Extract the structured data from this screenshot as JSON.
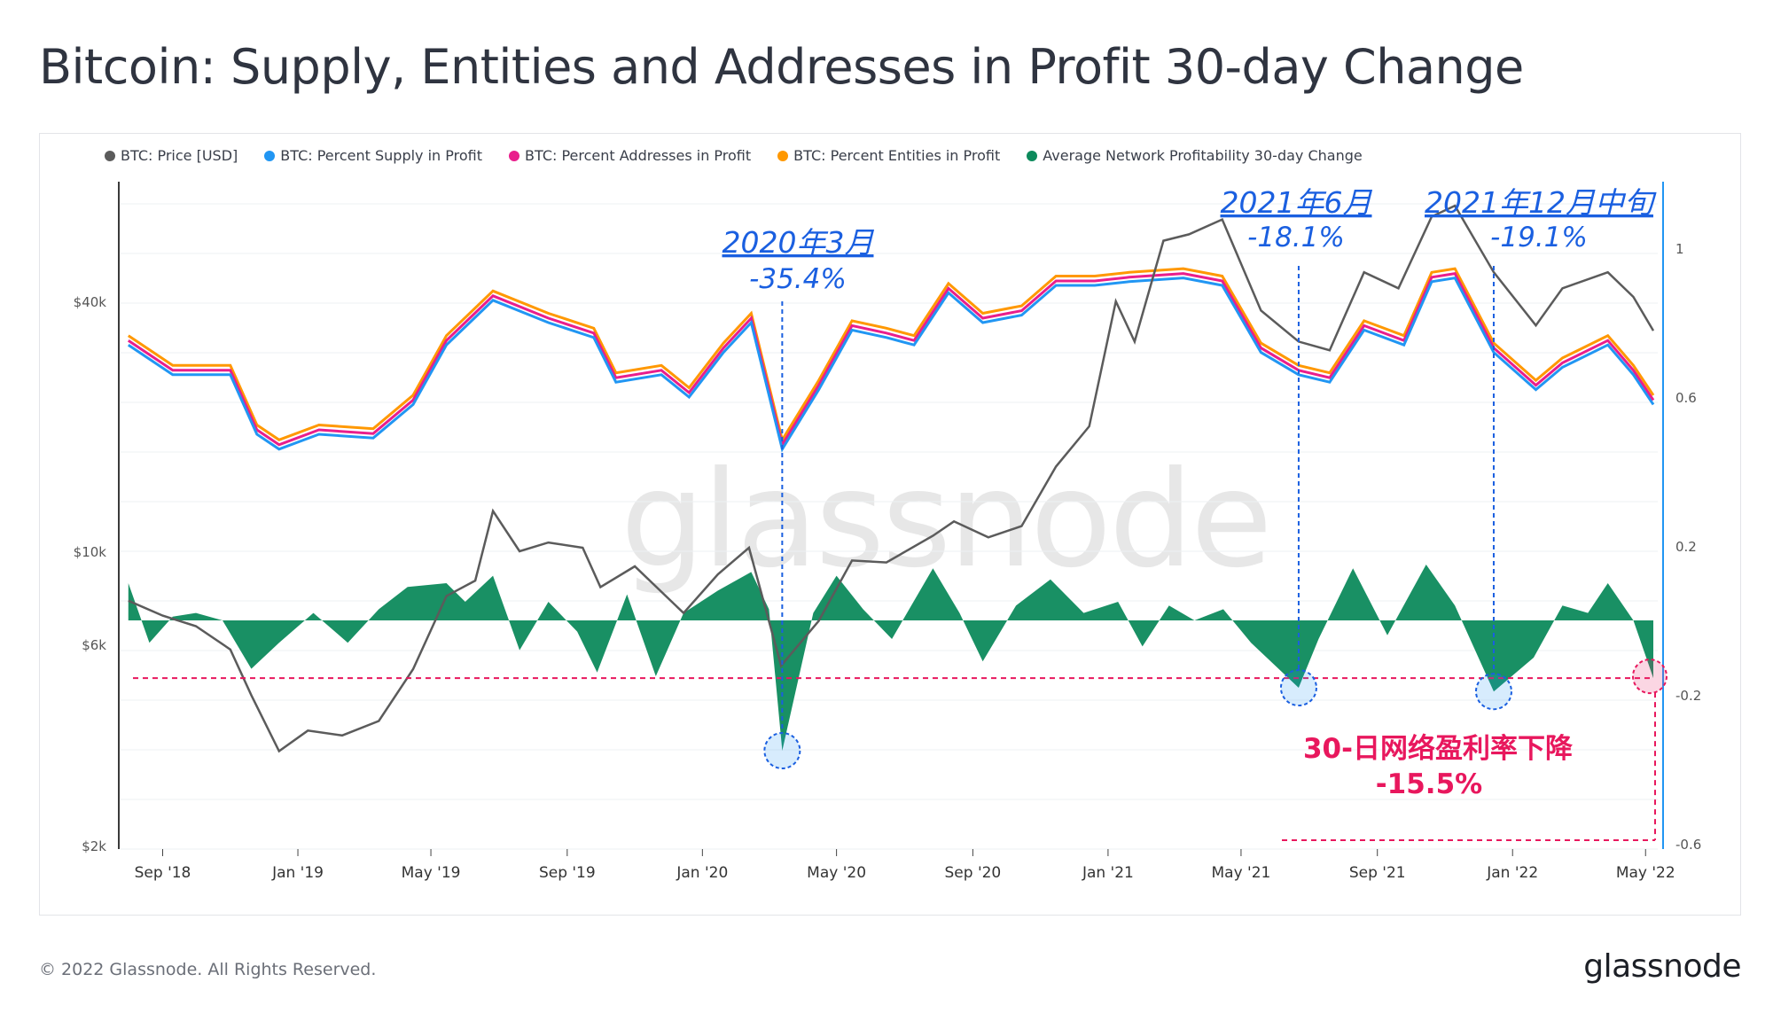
{
  "title": "Bitcoin: Supply, Entities and Addresses in Profit 30-day Change",
  "footer": "© 2022 Glassnode. All Rights Reserved.",
  "logo": "glassnode",
  "watermark": "glassnode",
  "legend": [
    {
      "label": "BTC: Price [USD]",
      "color": "#5b5b5b"
    },
    {
      "label": "BTC: Percent Supply in Profit",
      "color": "#2196f3"
    },
    {
      "label": "BTC: Percent Addresses in Profit",
      "color": "#e91e8c"
    },
    {
      "label": "BTC: Percent Entities in Profit",
      "color": "#ff9800"
    },
    {
      "label": "Average Network Profitability 30-day Change",
      "color": "#0d8a5c"
    }
  ],
  "annotations": {
    "a1_date": "2020年3月",
    "a1_value": "-35.4%",
    "a2_date": "2021年6月",
    "a2_value": "-18.1%",
    "a3_date": "2021年12月中旬",
    "a3_value": "-19.1%",
    "pink_label": "30-日网络盈利率下降",
    "pink_value": "-15.5%"
  },
  "chart_data": {
    "type": "line",
    "x_ticks": [
      "Sep '18",
      "Jan '19",
      "May '19",
      "Sep '19",
      "Jan '20",
      "May '20",
      "Sep '20",
      "Jan '21",
      "May '21",
      "Sep '21",
      "Jan '22",
      "May '22"
    ],
    "y_left_ticks": [
      "$40k",
      "$10k",
      "$6k",
      "$2k"
    ],
    "y_left_tick_values": [
      40000,
      10000,
      6000,
      2000
    ],
    "y_left_scale": "log",
    "y_right_ticks": [
      "1",
      "0.6",
      "0.2",
      "-0.2",
      "-0.6"
    ],
    "y_right_range": [
      -0.6,
      1.0
    ],
    "colors": {
      "price": "#5b5b5b",
      "supply": "#2196f3",
      "addresses": "#e91e8c",
      "entities": "#ff9800",
      "change": "#0d8a5c",
      "annotation": "#1a5fe0",
      "alert": "#e8175d"
    },
    "series": [
      {
        "name": "BTC: Price [USD]",
        "axis": "left",
        "points": [
          [
            "2018-08-01",
            7600
          ],
          [
            "2018-09-01",
            7000
          ],
          [
            "2018-10-01",
            6600
          ],
          [
            "2018-11-01",
            5800
          ],
          [
            "2018-11-20",
            4500
          ],
          [
            "2018-12-15",
            3300
          ],
          [
            "2019-01-10",
            3700
          ],
          [
            "2019-02-10",
            3600
          ],
          [
            "2019-03-15",
            3900
          ],
          [
            "2019-04-15",
            5200
          ],
          [
            "2019-05-15",
            7800
          ],
          [
            "2019-06-10",
            8500
          ],
          [
            "2019-06-26",
            12500
          ],
          [
            "2019-07-20",
            10000
          ],
          [
            "2019-08-15",
            10500
          ],
          [
            "2019-09-15",
            10200
          ],
          [
            "2019-10-01",
            8200
          ],
          [
            "2019-11-01",
            9200
          ],
          [
            "2019-12-15",
            7100
          ],
          [
            "2020-01-15",
            8800
          ],
          [
            "2020-02-12",
            10200
          ],
          [
            "2020-03-12",
            5300
          ],
          [
            "2020-04-15",
            6800
          ],
          [
            "2020-05-15",
            9500
          ],
          [
            "2020-06-15",
            9400
          ],
          [
            "2020-07-27",
            10900
          ],
          [
            "2020-08-15",
            11800
          ],
          [
            "2020-09-15",
            10800
          ],
          [
            "2020-10-15",
            11500
          ],
          [
            "2020-11-15",
            16000
          ],
          [
            "2020-12-15",
            20000
          ],
          [
            "2021-01-08",
            40000
          ],
          [
            "2021-01-25",
            32000
          ],
          [
            "2021-02-20",
            56000
          ],
          [
            "2021-03-15",
            58000
          ],
          [
            "2021-04-14",
            63000
          ],
          [
            "2021-05-19",
            38000
          ],
          [
            "2021-06-22",
            32000
          ],
          [
            "2021-07-20",
            30500
          ],
          [
            "2021-08-20",
            47000
          ],
          [
            "2021-09-20",
            43000
          ],
          [
            "2021-10-20",
            64000
          ],
          [
            "2021-11-10",
            68000
          ],
          [
            "2021-12-15",
            47000
          ],
          [
            "2022-01-22",
            35000
          ],
          [
            "2022-02-15",
            43000
          ],
          [
            "2022-03-28",
            47000
          ],
          [
            "2022-04-20",
            41000
          ],
          [
            "2022-05-08",
            34000
          ]
        ]
      },
      {
        "name": "BTC: Percent Supply in Profit",
        "axis": "right",
        "points": [
          [
            "2018-08-01",
            0.74
          ],
          [
            "2018-09-10",
            0.66
          ],
          [
            "2018-11-01",
            0.66
          ],
          [
            "2018-11-25",
            0.5
          ],
          [
            "2018-12-15",
            0.46
          ],
          [
            "2019-01-20",
            0.5
          ],
          [
            "2019-03-10",
            0.49
          ],
          [
            "2019-04-15",
            0.58
          ],
          [
            "2019-05-15",
            0.74
          ],
          [
            "2019-06-26",
            0.86
          ],
          [
            "2019-08-15",
            0.8
          ],
          [
            "2019-09-25",
            0.76
          ],
          [
            "2019-10-15",
            0.64
          ],
          [
            "2019-11-25",
            0.66
          ],
          [
            "2019-12-20",
            0.6
          ],
          [
            "2020-01-20",
            0.72
          ],
          [
            "2020-02-14",
            0.8
          ],
          [
            "2020-03-13",
            0.46
          ],
          [
            "2020-04-15",
            0.62
          ],
          [
            "2020-05-15",
            0.78
          ],
          [
            "2020-06-15",
            0.76
          ],
          [
            "2020-07-10",
            0.74
          ],
          [
            "2020-08-10",
            0.88
          ],
          [
            "2020-09-10",
            0.8
          ],
          [
            "2020-10-15",
            0.82
          ],
          [
            "2020-11-15",
            0.9
          ],
          [
            "2020-12-20",
            0.9
          ],
          [
            "2021-01-20",
            0.91
          ],
          [
            "2021-03-10",
            0.92
          ],
          [
            "2021-04-14",
            0.9
          ],
          [
            "2021-05-19",
            0.72
          ],
          [
            "2021-06-22",
            0.66
          ],
          [
            "2021-07-20",
            0.64
          ],
          [
            "2021-08-20",
            0.78
          ],
          [
            "2021-09-25",
            0.74
          ],
          [
            "2021-10-20",
            0.91
          ],
          [
            "2021-11-10",
            0.92
          ],
          [
            "2021-12-15",
            0.72
          ],
          [
            "2022-01-22",
            0.62
          ],
          [
            "2022-02-15",
            0.68
          ],
          [
            "2022-03-28",
            0.74
          ],
          [
            "2022-04-20",
            0.66
          ],
          [
            "2022-05-08",
            0.58
          ]
        ]
      },
      {
        "name": "Average Network Profitability 30-day Change",
        "axis": "right",
        "points": [
          [
            "2018-08-01",
            0.1
          ],
          [
            "2018-08-20",
            -0.06
          ],
          [
            "2018-09-10",
            0.01
          ],
          [
            "2018-10-01",
            0.02
          ],
          [
            "2018-10-25",
            0.0
          ],
          [
            "2018-11-20",
            -0.13
          ],
          [
            "2018-12-15",
            -0.06
          ],
          [
            "2019-01-15",
            0.02
          ],
          [
            "2019-02-15",
            -0.06
          ],
          [
            "2019-03-15",
            0.03
          ],
          [
            "2019-04-10",
            0.09
          ],
          [
            "2019-05-15",
            0.1
          ],
          [
            "2019-06-01",
            0.05
          ],
          [
            "2019-06-26",
            0.12
          ],
          [
            "2019-07-20",
            -0.08
          ],
          [
            "2019-08-15",
            0.05
          ],
          [
            "2019-09-10",
            -0.03
          ],
          [
            "2019-09-28",
            -0.14
          ],
          [
            "2019-10-25",
            0.07
          ],
          [
            "2019-11-20",
            -0.15
          ],
          [
            "2019-12-15",
            0.02
          ],
          [
            "2020-01-15",
            0.08
          ],
          [
            "2020-02-14",
            0.13
          ],
          [
            "2020-03-01",
            0.03
          ],
          [
            "2020-03-13",
            -0.35
          ],
          [
            "2020-04-10",
            0.02
          ],
          [
            "2020-05-01",
            0.12
          ],
          [
            "2020-05-25",
            0.03
          ],
          [
            "2020-06-20",
            -0.05
          ],
          [
            "2020-07-27",
            0.14
          ],
          [
            "2020-08-20",
            0.02
          ],
          [
            "2020-09-10",
            -0.11
          ],
          [
            "2020-10-10",
            0.04
          ],
          [
            "2020-11-10",
            0.11
          ],
          [
            "2020-12-10",
            0.02
          ],
          [
            "2021-01-10",
            0.05
          ],
          [
            "2021-02-01",
            -0.07
          ],
          [
            "2021-02-25",
            0.04
          ],
          [
            "2021-03-20",
            0.0
          ],
          [
            "2021-04-15",
            0.03
          ],
          [
            "2021-05-10",
            -0.06
          ],
          [
            "2021-06-22",
            -0.181
          ],
          [
            "2021-07-10",
            -0.05
          ],
          [
            "2021-08-10",
            0.14
          ],
          [
            "2021-09-10",
            -0.04
          ],
          [
            "2021-10-15",
            0.15
          ],
          [
            "2021-11-10",
            0.04
          ],
          [
            "2021-12-15",
            -0.191
          ],
          [
            "2022-01-20",
            -0.1
          ],
          [
            "2022-02-15",
            0.04
          ],
          [
            "2022-03-10",
            0.02
          ],
          [
            "2022-03-28",
            0.1
          ],
          [
            "2022-04-20",
            0.0
          ],
          [
            "2022-05-08",
            -0.155
          ]
        ]
      }
    ]
  }
}
